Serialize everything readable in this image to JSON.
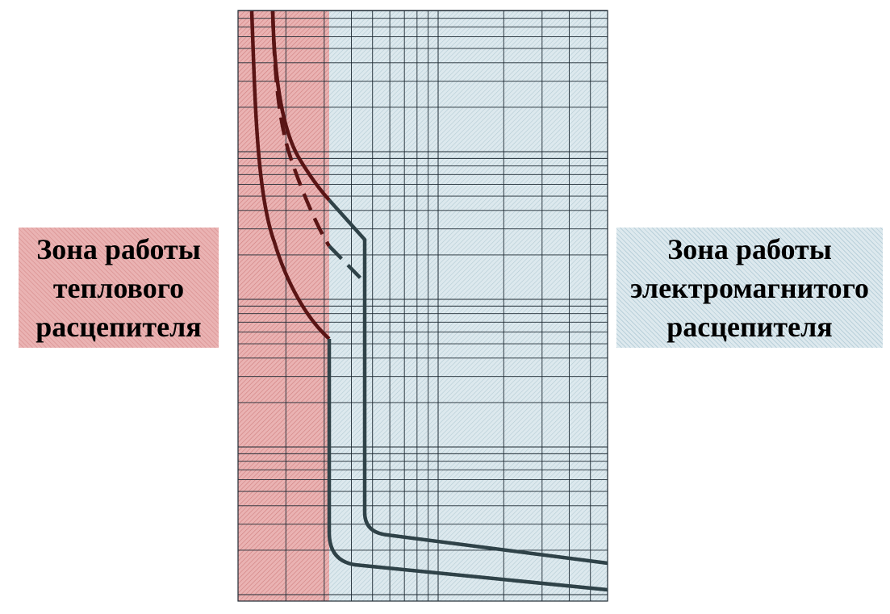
{
  "labels": {
    "thermal": [
      "Зона работы",
      "теплового",
      "расцепителя"
    ],
    "magnetic": [
      "Зона работы",
      "электромагнитого",
      "расцепителя"
    ]
  },
  "colors": {
    "thermal_zone_fill": "#eab3b3",
    "magnetic_zone_fill": "#dde9ee",
    "grid_line": "#1e2a33",
    "thermal_curve": "#5a1515",
    "magnetic_curve": "#2f4248"
  }
}
